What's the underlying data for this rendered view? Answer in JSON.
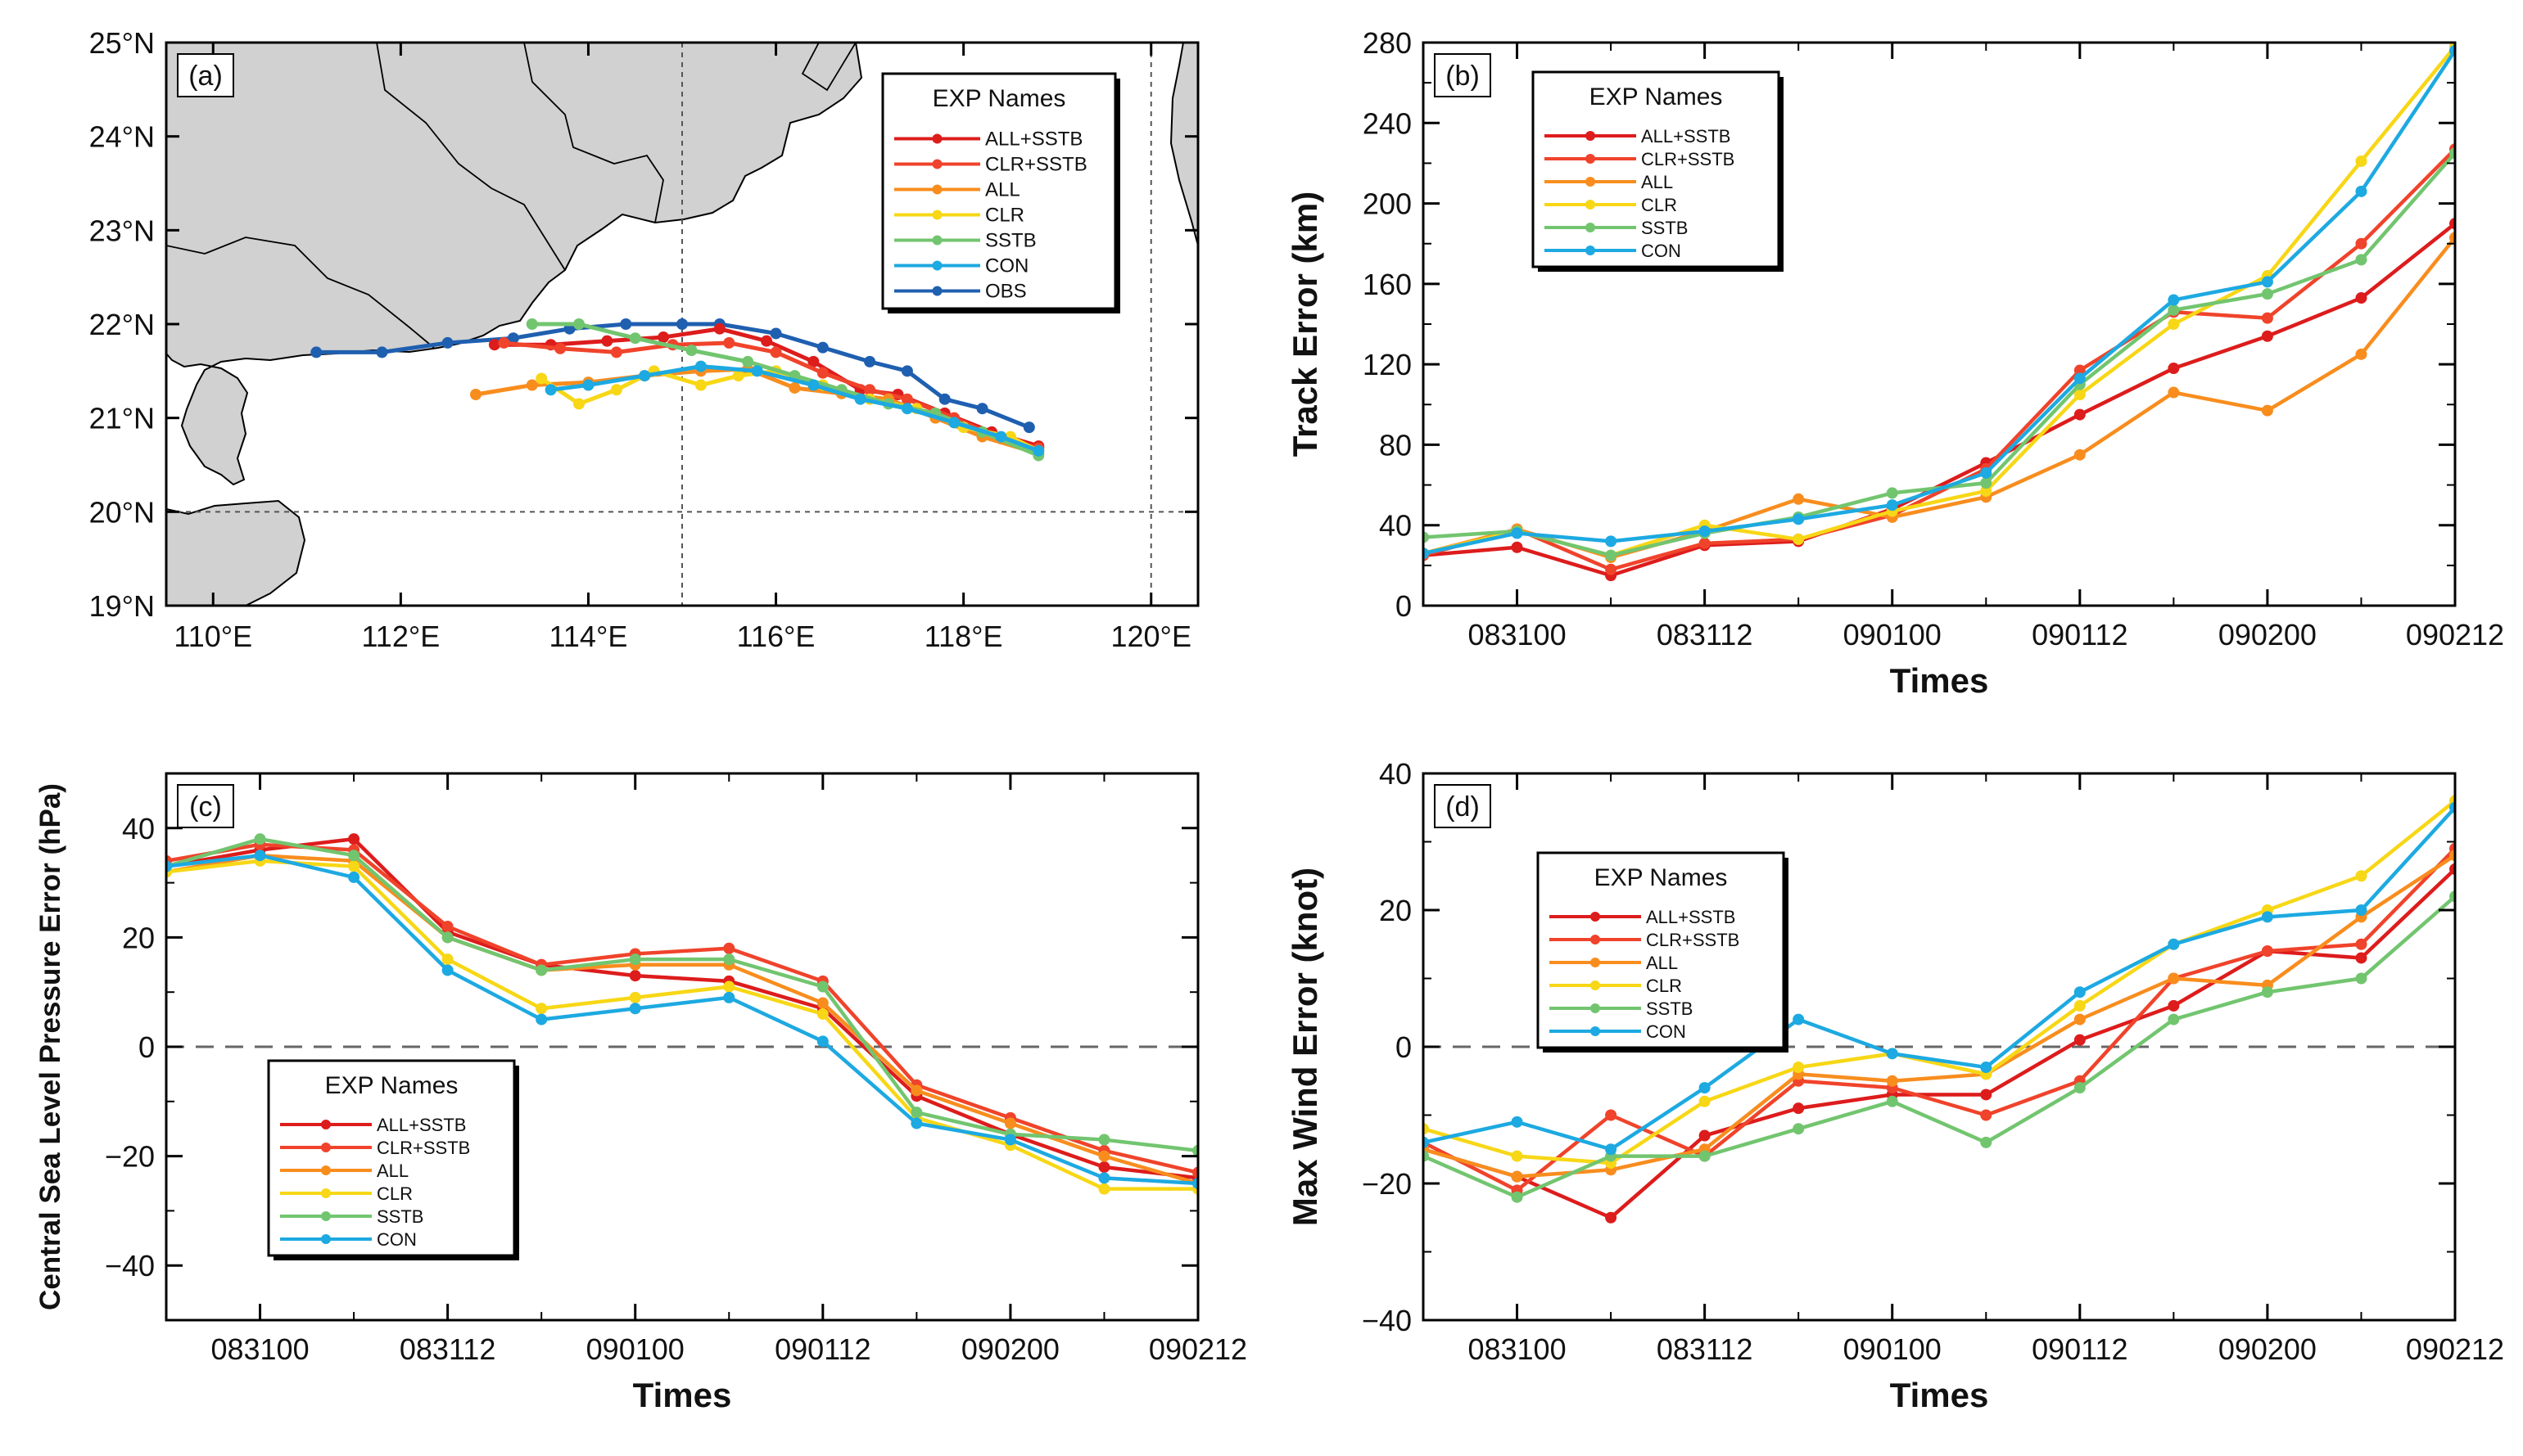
{
  "series_styles": [
    {
      "name": "ALL+SSTB",
      "color": "#dd1c1c"
    },
    {
      "name": "CLR+SSTB",
      "color": "#f0432b"
    },
    {
      "name": "ALL",
      "color": "#f88d1e"
    },
    {
      "name": "CLR",
      "color": "#f7d716"
    },
    {
      "name": "SSTB",
      "color": "#72c56f"
    },
    {
      "name": "CON",
      "color": "#1da9e1"
    },
    {
      "name": "OBS",
      "color": "#1f5fb0"
    }
  ],
  "chart_data": [
    {
      "id": "a",
      "panel_label": "(a)",
      "type": "map",
      "xlim": [
        109.5,
        120.5
      ],
      "ylim": [
        19,
        25
      ],
      "xticks": [
        110,
        112,
        114,
        116,
        118,
        120
      ],
      "xtick_labels": [
        "110°E",
        "112°E",
        "114°E",
        "116°E",
        "118°E",
        "120°E"
      ],
      "yticks": [
        19,
        20,
        21,
        22,
        23,
        24,
        25
      ],
      "ytick_labels": [
        "19°N",
        "20°N",
        "21°N",
        "22°N",
        "23°N",
        "24°N",
        "25°N"
      ],
      "legend": {
        "title": "EXP Names",
        "items": [
          "ALL+SSTB",
          "CLR+SSTB",
          "ALL",
          "CLR",
          "SSTB",
          "CON",
          "OBS"
        ]
      },
      "series": [
        {
          "name": "OBS",
          "lon": [
            111.1,
            111.8,
            112.5,
            113.2,
            113.8,
            114.4,
            115.0,
            115.4,
            116.0,
            116.5,
            117.0,
            117.4,
            117.8,
            118.2,
            118.7
          ],
          "lat": [
            21.7,
            21.7,
            21.8,
            21.85,
            21.95,
            22.0,
            22.0,
            22.0,
            21.9,
            21.75,
            21.6,
            21.5,
            21.2,
            21.1,
            20.9
          ]
        },
        {
          "name": "ALL+SSTB",
          "lon": [
            113.0,
            113.6,
            114.2,
            114.8,
            115.4,
            115.9,
            116.4,
            116.9,
            117.3,
            117.8,
            118.3,
            118.8
          ],
          "lat": [
            21.78,
            21.78,
            21.82,
            21.86,
            21.95,
            21.82,
            21.6,
            21.3,
            21.25,
            21.05,
            20.85,
            20.7
          ]
        },
        {
          "name": "CLR+SSTB",
          "lon": [
            113.1,
            113.7,
            114.3,
            114.9,
            115.5,
            116.0,
            116.5,
            117.0,
            117.4,
            117.9,
            118.4,
            118.8
          ],
          "lat": [
            21.8,
            21.74,
            21.7,
            21.78,
            21.8,
            21.7,
            21.48,
            21.3,
            21.2,
            21.0,
            20.78,
            20.68
          ]
        },
        {
          "name": "ALL",
          "lon": [
            112.8,
            113.4,
            114.0,
            114.6,
            115.2,
            115.7,
            116.2,
            116.7,
            117.2,
            117.7,
            118.2,
            118.8
          ],
          "lat": [
            21.25,
            21.35,
            21.38,
            21.45,
            21.5,
            21.52,
            21.32,
            21.26,
            21.2,
            21.0,
            20.8,
            20.62
          ]
        },
        {
          "name": "CLR",
          "lon": [
            113.5,
            113.9,
            114.3,
            114.7,
            115.2,
            115.6,
            116.0,
            116.5,
            117.0,
            117.5,
            118.0,
            118.5,
            118.8
          ],
          "lat": [
            21.42,
            21.15,
            21.3,
            21.5,
            21.35,
            21.45,
            21.5,
            21.35,
            21.2,
            21.1,
            20.9,
            20.8,
            20.65
          ]
        },
        {
          "name": "SSTB",
          "lon": [
            113.4,
            113.9,
            114.5,
            115.1,
            115.7,
            116.2,
            116.7,
            117.2,
            117.7,
            118.2,
            118.8
          ],
          "lat": [
            22.0,
            22.0,
            21.85,
            21.72,
            21.6,
            21.45,
            21.3,
            21.15,
            21.05,
            20.85,
            20.6
          ]
        },
        {
          "name": "CON",
          "lon": [
            113.6,
            114.0,
            114.6,
            115.2,
            115.8,
            116.4,
            116.9,
            117.4,
            117.9,
            118.4,
            118.8
          ],
          "lat": [
            21.3,
            21.35,
            21.45,
            21.55,
            21.5,
            21.35,
            21.2,
            21.1,
            20.95,
            20.8,
            20.65
          ]
        }
      ]
    },
    {
      "id": "b",
      "panel_label": "(b)",
      "type": "line",
      "xlabel": "Times",
      "ylabel": "Track Error (km)",
      "x": [
        0,
        1,
        2,
        3,
        4,
        5,
        6,
        7,
        8,
        9,
        10,
        11
      ],
      "xlim": [
        0,
        11
      ],
      "xtick_positions": [
        1,
        3,
        5,
        7,
        9,
        11
      ],
      "xtick_labels": [
        "083100",
        "083112",
        "090100",
        "090112",
        "090200",
        "090212"
      ],
      "ylim": [
        0,
        280
      ],
      "yticks": [
        0,
        40,
        80,
        120,
        160,
        200,
        240,
        280
      ],
      "ytick_labels": [
        "0",
        "40",
        "80",
        "120",
        "160",
        "200",
        "240",
        "280"
      ],
      "legend": {
        "title": "EXP Names",
        "items": [
          "ALL+SSTB",
          "CLR+SSTB",
          "ALL",
          "CLR",
          "SSTB",
          "CON"
        ]
      },
      "series": [
        {
          "name": "ALL+SSTB",
          "values": [
            25,
            29,
            15,
            30,
            32,
            48,
            71,
            95,
            118,
            134,
            153,
            190
          ]
        },
        {
          "name": "CLR+SSTB",
          "values": [
            25,
            38,
            18,
            31,
            33,
            45,
            68,
            117,
            146,
            143,
            180,
            227
          ]
        },
        {
          "name": "ALL",
          "values": [
            26,
            38,
            24,
            37,
            53,
            44,
            54,
            75,
            106,
            97,
            125,
            183
          ]
        },
        {
          "name": "CLR",
          "values": [
            26,
            37,
            25,
            40,
            33,
            47,
            57,
            105,
            140,
            164,
            221,
            278
          ]
        },
        {
          "name": "SSTB",
          "values": [
            34,
            37,
            25,
            36,
            44,
            56,
            61,
            110,
            147,
            155,
            172,
            225
          ]
        },
        {
          "name": "CON",
          "values": [
            26,
            36,
            32,
            37,
            43,
            50,
            66,
            113,
            152,
            161,
            206,
            276
          ]
        }
      ]
    },
    {
      "id": "c",
      "panel_label": "(c)",
      "type": "line",
      "xlabel": "Times",
      "ylabel": "Central Sea Level Pressure Error (hPa)",
      "x": [
        0,
        1,
        2,
        3,
        4,
        5,
        6,
        7,
        8,
        9,
        10,
        11
      ],
      "xlim": [
        0,
        11
      ],
      "xtick_positions": [
        1,
        3,
        5,
        7,
        9,
        11
      ],
      "xtick_labels": [
        "083100",
        "083112",
        "090100",
        "090112",
        "090200",
        "090212"
      ],
      "ylim": [
        -50,
        50
      ],
      "yticks": [
        -40,
        -20,
        0,
        20,
        40
      ],
      "ytick_labels": [
        "−40",
        "−20",
        "0",
        "20",
        "40"
      ],
      "zero_line": true,
      "legend": {
        "title": "EXP Names",
        "items": [
          "ALL+SSTB",
          "CLR+SSTB",
          "ALL",
          "CLR",
          "SSTB",
          "CON"
        ]
      },
      "series": [
        {
          "name": "ALL+SSTB",
          "values": [
            33,
            36,
            38,
            21,
            15,
            13,
            12,
            7,
            -9,
            -16,
            -22,
            -24
          ]
        },
        {
          "name": "CLR+SSTB",
          "values": [
            34,
            37,
            36,
            22,
            15,
            17,
            18,
            12,
            -7,
            -13,
            -19,
            -23
          ]
        },
        {
          "name": "ALL",
          "values": [
            32,
            35,
            34,
            20,
            14,
            15,
            15,
            8,
            -8,
            -14,
            -20,
            -25
          ]
        },
        {
          "name": "CLR",
          "values": [
            32,
            34,
            33,
            16,
            7,
            9,
            11,
            6,
            -13,
            -18,
            -26,
            -26
          ]
        },
        {
          "name": "SSTB",
          "values": [
            33,
            38,
            35,
            20,
            14,
            16,
            16,
            11,
            -12,
            -16,
            -17,
            -19
          ]
        },
        {
          "name": "CON",
          "values": [
            33,
            35,
            31,
            14,
            5,
            7,
            9,
            1,
            -14,
            -17,
            -24,
            -25
          ]
        }
      ]
    },
    {
      "id": "d",
      "panel_label": "(d)",
      "type": "line",
      "xlabel": "Times",
      "ylabel": "Max Wind Error (knot)",
      "x": [
        0,
        1,
        2,
        3,
        4,
        5,
        6,
        7,
        8,
        9,
        10,
        11
      ],
      "xlim": [
        0,
        11
      ],
      "xtick_positions": [
        1,
        3,
        5,
        7,
        9,
        11
      ],
      "xtick_labels": [
        "083100",
        "083112",
        "090100",
        "090112",
        "090200",
        "090212"
      ],
      "ylim": [
        -40,
        40
      ],
      "yticks": [
        -40,
        -20,
        0,
        20,
        40
      ],
      "ytick_labels": [
        "−40",
        "−20",
        "0",
        "20",
        "40"
      ],
      "zero_line": true,
      "legend": {
        "title": "EXP Names",
        "items": [
          "ALL+SSTB",
          "CLR+SSTB",
          "ALL",
          "CLR",
          "SSTB",
          "CON"
        ]
      },
      "series": [
        {
          "name": "ALL+SSTB",
          "values": [
            -15,
            -19,
            -25,
            -13,
            -9,
            -7,
            -7,
            1,
            6,
            14,
            13,
            26
          ]
        },
        {
          "name": "CLR+SSTB",
          "values": [
            -14,
            -21,
            -10,
            -16,
            -5,
            -6,
            -10,
            -5,
            10,
            14,
            15,
            29
          ]
        },
        {
          "name": "ALL",
          "values": [
            -15,
            -19,
            -18,
            -15,
            -4,
            -5,
            -4,
            4,
            10,
            9,
            19,
            28
          ]
        },
        {
          "name": "CLR",
          "values": [
            -12,
            -16,
            -17,
            -8,
            -3,
            -1,
            -4,
            6,
            15,
            20,
            25,
            36
          ]
        },
        {
          "name": "SSTB",
          "values": [
            -16,
            -22,
            -16,
            -16,
            -12,
            -8,
            -14,
            -6,
            4,
            8,
            10,
            22
          ]
        },
        {
          "name": "CON",
          "values": [
            -14,
            -11,
            -15,
            -6,
            4,
            -1,
            -3,
            8,
            15,
            19,
            20,
            35
          ]
        }
      ]
    }
  ]
}
